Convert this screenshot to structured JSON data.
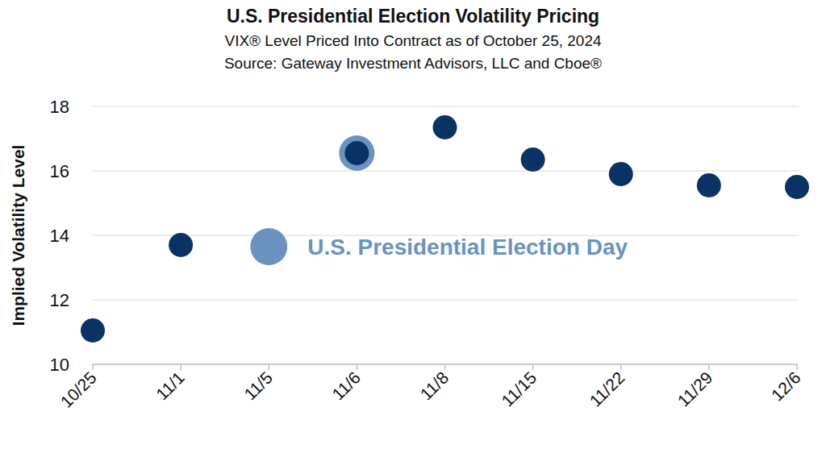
{
  "chart_data": {
    "type": "scatter",
    "title": "U.S. Presidential Election Volatility Pricing",
    "subtitle": [
      "VIX® Level Priced Into Contract as of October 25, 2024",
      "Source: Gateway Investment Advisors, LLC and Cboe®"
    ],
    "y_label": "Implied Volatility Level",
    "categories": [
      "10/25",
      "11/1",
      "11/5",
      "11/6",
      "11/8",
      "11/15",
      "11/22",
      "11/29",
      "12/6"
    ],
    "series": [
      {
        "color": "#0b3264",
        "marker": "circle",
        "values": [
          11.05,
          13.7,
          null,
          16.55,
          17.35,
          16.35,
          15.9,
          15.55,
          15.5
        ]
      },
      {
        "name": "U.S. Presidential Election Day",
        "color": "#6a93bf",
        "marker": "ring",
        "values": [
          null,
          null,
          null,
          16.55,
          null,
          null,
          null,
          null,
          null
        ]
      }
    ],
    "ylim": [
      10,
      18
    ],
    "yticks": [
      10,
      12,
      14,
      16,
      18
    ],
    "grid": true,
    "legend": "center"
  }
}
